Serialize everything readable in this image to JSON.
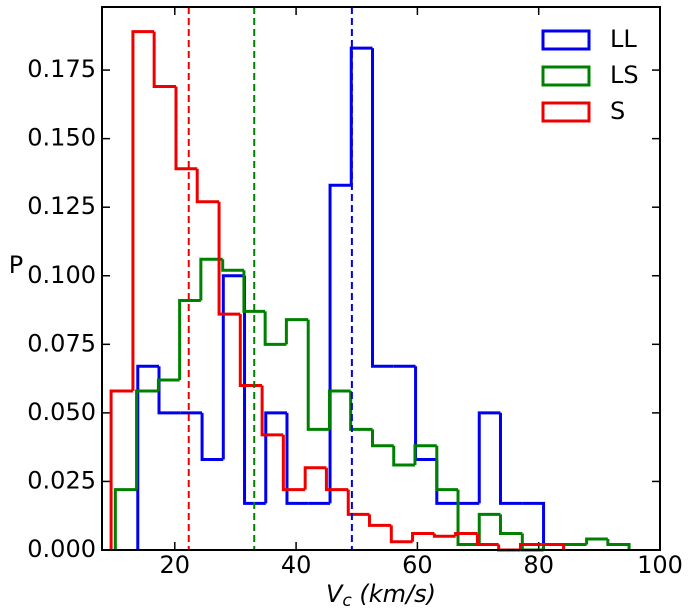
{
  "chart_data": {
    "type": "histogram",
    "xlabel": [
      "V",
      "c",
      " (km/s)"
    ],
    "ylabel": "P",
    "xlim": [
      8,
      100
    ],
    "ylim": [
      0,
      0.198
    ],
    "xticks": [
      20,
      40,
      60,
      80,
      100
    ],
    "yticks": [
      {
        "value": 0,
        "label": "0.000"
      },
      {
        "value": 0.025,
        "label": "0.025"
      },
      {
        "value": 0.05,
        "label": "0.050"
      },
      {
        "value": 0.075,
        "label": "0.075"
      },
      {
        "value": 0.1,
        "label": "0.100"
      },
      {
        "value": 0.125,
        "label": "0.125"
      },
      {
        "value": 0.15,
        "label": "0.150"
      },
      {
        "value": 0.175,
        "label": "0.175"
      }
    ],
    "legend": "upper right",
    "series": [
      {
        "name": "LL",
        "color": "#0000ee",
        "mean": 49.2,
        "bins": [
          13.9,
          17.4,
          20.9,
          24.5,
          28.0,
          31.5,
          35.0,
          38.5,
          42.1,
          45.6,
          49.1,
          52.6,
          56.1,
          59.7,
          63.2,
          66.7,
          70.2,
          73.7,
          77.3,
          80.8
        ],
        "values": [
          0.067,
          0.05,
          0.05,
          0.033,
          0.1,
          0.017,
          0.05,
          0.017,
          0.017,
          0.133,
          0.183,
          0.067,
          0.067,
          0.033,
          0.017,
          0.017,
          0.05,
          0.017,
          0.017
        ]
      },
      {
        "name": "LS",
        "color": "#008000",
        "mean": 33.1,
        "bins": [
          10.2,
          13.7,
          17.3,
          20.8,
          24.3,
          27.9,
          31.4,
          34.9,
          38.4,
          42.0,
          45.5,
          49.0,
          52.6,
          56.1,
          59.6,
          63.2,
          66.7,
          70.2,
          73.7,
          77.3,
          80.8,
          84.3,
          87.9,
          91.4,
          94.9
        ],
        "values": [
          0.022,
          0.058,
          0.062,
          0.091,
          0.106,
          0.102,
          0.087,
          0.075,
          0.084,
          0.044,
          0.058,
          0.044,
          0.038,
          0.031,
          0.038,
          0.022,
          0.002,
          0.013,
          0.006,
          0.0,
          0.002,
          0.002,
          0.004,
          0.002
        ]
      },
      {
        "name": "S",
        "color": "#ee0000",
        "mean": 22.3,
        "bins": [
          9.5,
          13.1,
          16.6,
          20.2,
          23.7,
          27.3,
          30.8,
          34.4,
          37.9,
          41.5,
          45.0,
          48.6,
          52.1,
          55.7,
          59.2,
          62.8,
          66.3,
          69.9,
          73.4,
          77.0,
          80.5,
          84.1
        ],
        "values": [
          0.058,
          0.189,
          0.169,
          0.139,
          0.127,
          0.086,
          0.06,
          0.042,
          0.022,
          0.03,
          0.022,
          0.013,
          0.009,
          0.003,
          0.006,
          0.005,
          0.006,
          0.002,
          0.0,
          0.002,
          0.002
        ]
      }
    ]
  }
}
